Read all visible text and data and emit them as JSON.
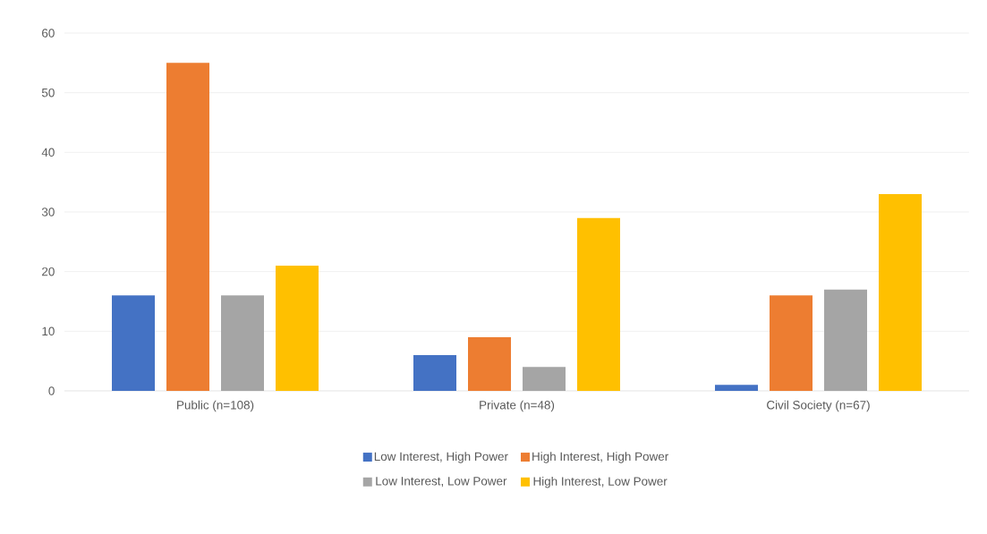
{
  "chart_data": {
    "type": "bar",
    "categories": [
      "Public (n=108)",
      "Private (n=48)",
      "Civil Society (n=67)"
    ],
    "series": [
      {
        "name": "Low Interest, High Power",
        "color": "#4472c4",
        "values": [
          16,
          6,
          1
        ]
      },
      {
        "name": "High Interest, High Power",
        "color": "#ed7d31",
        "values": [
          55,
          9,
          16
        ]
      },
      {
        "name": "Low Interest, Low Power",
        "color": "#a5a5a5",
        "values": [
          16,
          4,
          17
        ]
      },
      {
        "name": "High Interest, Low Power",
        "color": "#ffc000",
        "values": [
          21,
          29,
          33
        ]
      }
    ],
    "ylim": [
      0,
      60
    ],
    "yticks": [
      0,
      10,
      20,
      30,
      40,
      50,
      60
    ],
    "grid": "y",
    "legend": "bottom"
  }
}
